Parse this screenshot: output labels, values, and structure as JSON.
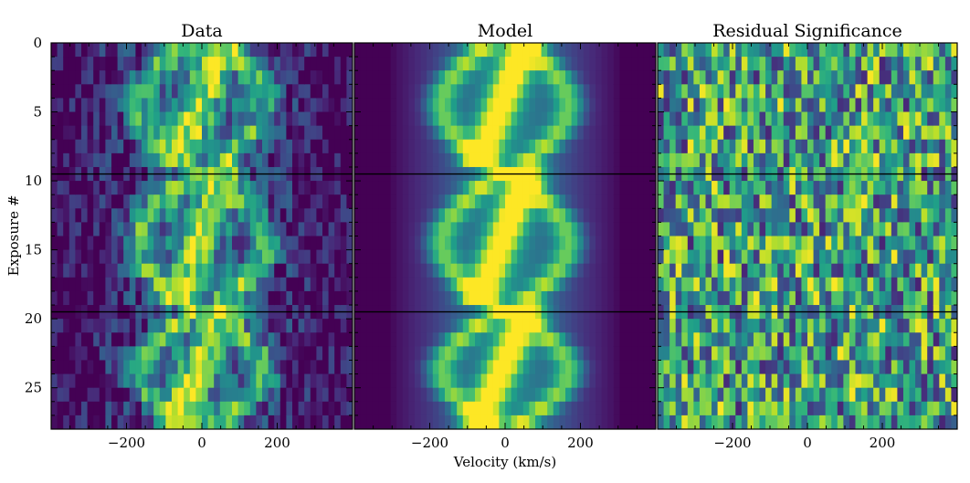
{
  "chart_data": {
    "type": "heatmap",
    "colormap": "viridis",
    "ylabel": "Exposure #",
    "xlabel": "Velocity (km/s)",
    "x_range": [
      -400,
      400
    ],
    "y_range": [
      0,
      28
    ],
    "y_inverted": true,
    "x_ticks": [
      -200,
      0,
      200
    ],
    "x_tick_labels": [
      "−200",
      "0",
      "200"
    ],
    "y_ticks": [
      0,
      5,
      10,
      15,
      20,
      25
    ],
    "y_tick_labels": [
      "0",
      "5",
      "10",
      "15",
      "20",
      "25"
    ],
    "separator_lines_y": [
      9.5,
      19.5
    ],
    "panels": [
      {
        "title": "Data",
        "kind": "observed"
      },
      {
        "title": "Model",
        "kind": "model"
      },
      {
        "title": "Residual Significance",
        "kind": "residual"
      }
    ]
  }
}
